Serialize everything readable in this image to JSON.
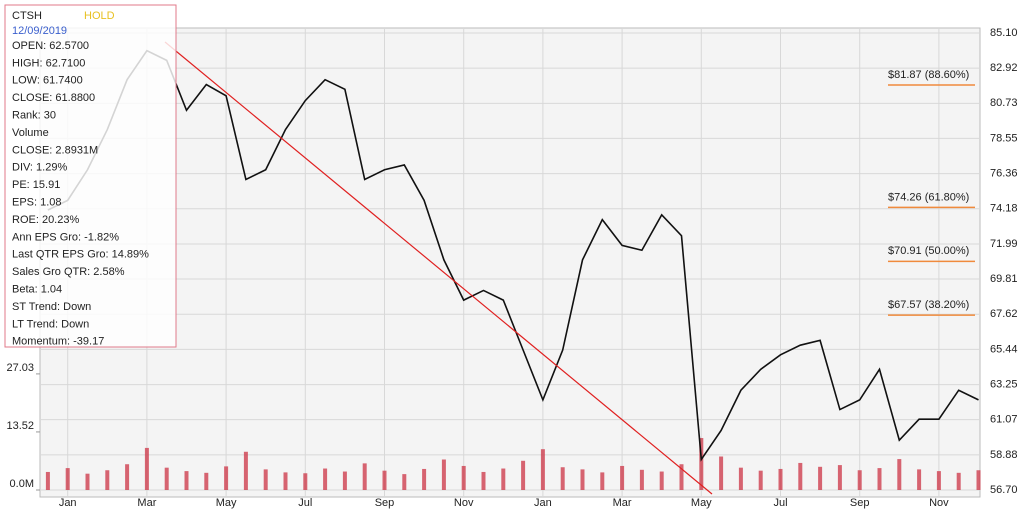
{
  "chart_data": {
    "type": "line",
    "categories": [
      null,
      "Jan",
      null,
      null,
      null,
      "Mar",
      null,
      null,
      null,
      "May",
      null,
      null,
      null,
      "Jul",
      null,
      null,
      null,
      "Sep",
      null,
      null,
      null,
      "Nov",
      null,
      null,
      null,
      "Jan",
      null,
      null,
      null,
      "Mar",
      null,
      null,
      null,
      "May",
      null,
      null,
      null,
      "Jul",
      null,
      null,
      null,
      "Sep",
      null,
      null,
      null,
      "Nov",
      null,
      null
    ],
    "values": [
      74.1,
      74.7,
      76.6,
      79.1,
      82.2,
      84.0,
      83.4,
      80.3,
      81.9,
      81.2,
      76.0,
      76.6,
      79.1,
      80.9,
      82.2,
      81.6,
      76.0,
      76.6,
      76.9,
      74.7,
      71.0,
      68.5,
      69.1,
      68.5,
      65.4,
      62.3,
      65.4,
      71.0,
      73.5,
      71.9,
      71.6,
      73.8,
      72.5,
      58.6,
      60.4,
      62.9,
      64.2,
      65.1,
      65.7,
      66.0,
      61.7,
      62.3,
      64.2,
      59.8,
      61.1,
      61.1,
      62.9,
      62.3
    ],
    "color": "#111111",
    "ylim": [
      56.7,
      85.1
    ],
    "yticks": [
      {
        "value": 85.1,
        "label": "85.10"
      },
      82.92,
      80.73,
      78.55,
      76.36,
      74.18,
      71.99,
      69.81,
      67.62,
      65.44,
      63.25,
      61.07,
      58.88,
      {
        "value": 56.7,
        "label": "56.70"
      }
    ],
    "volume_values": [
      4.2,
      5.1,
      3.8,
      4.6,
      6.0,
      9.8,
      5.2,
      4.4,
      4.0,
      5.5,
      8.9,
      4.8,
      4.1,
      3.9,
      5.0,
      4.3,
      6.2,
      4.5,
      3.7,
      4.9,
      7.1,
      5.6,
      4.2,
      5.0,
      6.8,
      9.5,
      5.3,
      4.8,
      4.1,
      5.6,
      4.7,
      4.3,
      6.0,
      12.1,
      7.8,
      5.2,
      4.5,
      4.9,
      6.3,
      5.4,
      5.8,
      4.6,
      5.1,
      7.2,
      4.8,
      4.4,
      4.0,
      4.6
    ],
    "volume_color": "#cc3344",
    "y2lim": [
      0,
      106.4
    ],
    "y2ticks": [
      {
        "value": 0,
        "label": "0.0M"
      },
      13.52,
      27.03
    ],
    "grid": true,
    "fib_levels": [
      {
        "value": 81.87,
        "label": "$81.87 (88.60%)"
      },
      {
        "value": 74.26,
        "label": "$74.26 (61.80%)"
      },
      {
        "value": 70.91,
        "label": "$70.91 (50.00%)"
      },
      {
        "value": 67.57,
        "label": "$67.57 (38.20%)"
      }
    ],
    "fib_color": "#f08a3c"
  },
  "info_panel": {
    "symbol": "CTSH",
    "rating": "HOLD",
    "date": "12/09/2019",
    "lines": [
      "OPEN: 62.5700",
      "HIGH: 62.7100",
      "LOW: 61.7400",
      "CLOSE: 61.8800",
      "Rank: 30",
      "Volume",
      "CLOSE: 2.8931M",
      "DIV: 1.29%",
      "PE: 15.91",
      "EPS: 1.08",
      "ROE: 20.23%",
      "Ann EPS Gro: -1.82%",
      "Last QTR EPS Gro: 14.89%",
      "Sales Gro QTR: 2.58%",
      "Beta: 1.04",
      "ST Trend: Down",
      "LT Trend: Down",
      "Momentum: -39.17"
    ]
  }
}
